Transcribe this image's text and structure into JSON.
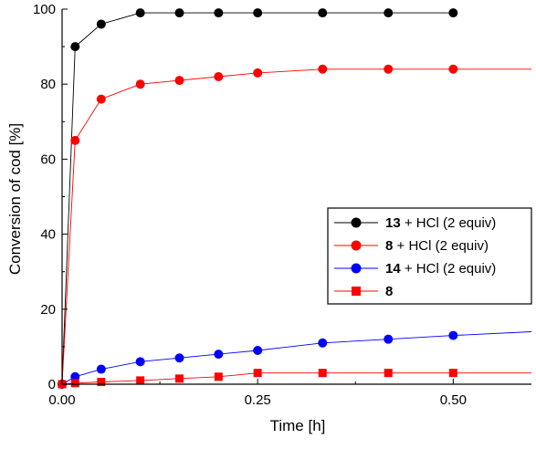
{
  "chart_data": {
    "type": "line",
    "xlabel": "Time [h]",
    "ylabel": "Conversion of cod [%]",
    "xlim": [
      0,
      0.6
    ],
    "ylim": [
      0,
      100
    ],
    "xticks": [
      0.0,
      0.25,
      0.5
    ],
    "xtick_labels": [
      "0.00",
      "0.25",
      "0.50"
    ],
    "yticks": [
      0,
      20,
      40,
      60,
      80,
      100
    ],
    "ytick_labels": [
      "0",
      "20",
      "40",
      "60",
      "80",
      "100"
    ],
    "grid": false,
    "legend_position": "center-right",
    "series": [
      {
        "name": "13 + HCl (2 equiv)",
        "name_bold": "13",
        "name_rest": " + HCl (2 equiv)",
        "color": "#000000",
        "marker": "circle",
        "x": [
          0,
          0.0167,
          0.05,
          0.1,
          0.15,
          0.2,
          0.25,
          0.333,
          0.417,
          0.5
        ],
        "y": [
          0,
          90,
          96,
          99,
          99,
          99,
          99,
          99,
          99,
          99
        ],
        "line_x": [
          0,
          0.0167,
          0.05,
          0.1,
          0.15,
          0.2,
          0.25,
          0.333,
          0.417,
          0.5
        ],
        "line_y": [
          0,
          90,
          96,
          99,
          99,
          99,
          99,
          99,
          99,
          99
        ]
      },
      {
        "name": "8 + HCl (2 equiv)",
        "name_bold": "8",
        "name_rest": " + HCl (2 equiv)",
        "color": "#ff0000",
        "marker": "circle",
        "x": [
          0,
          0.0167,
          0.05,
          0.1,
          0.15,
          0.2,
          0.25,
          0.333,
          0.417,
          0.5
        ],
        "y": [
          0,
          65,
          76,
          80,
          81,
          82,
          83,
          84,
          84,
          84
        ],
        "line_x": [
          0,
          0.0167,
          0.05,
          0.1,
          0.15,
          0.2,
          0.25,
          0.333,
          0.417,
          0.5,
          0.6
        ],
        "line_y": [
          0,
          65,
          76,
          80,
          81,
          82,
          83,
          84,
          84,
          84,
          84
        ]
      },
      {
        "name": "14 + HCl (2 equiv)",
        "name_bold": "14",
        "name_rest": " + HCl (2 equiv)",
        "color": "#0000ff",
        "marker": "circle",
        "x": [
          0,
          0.0167,
          0.05,
          0.1,
          0.15,
          0.2,
          0.25,
          0.333,
          0.417,
          0.5
        ],
        "y": [
          0,
          2,
          4,
          6,
          7,
          8,
          9,
          11,
          12,
          13
        ],
        "line_x": [
          0,
          0.0167,
          0.05,
          0.1,
          0.15,
          0.2,
          0.25,
          0.333,
          0.417,
          0.5,
          0.6
        ],
        "line_y": [
          0,
          2,
          4,
          6,
          7,
          8,
          9,
          11,
          12,
          13,
          14
        ]
      },
      {
        "name": "8",
        "name_bold": "8",
        "name_rest": "",
        "color": "#ff0000",
        "marker": "square",
        "x": [
          0,
          0.0167,
          0.05,
          0.1,
          0.15,
          0.2,
          0.25,
          0.333,
          0.417,
          0.5
        ],
        "y": [
          0,
          0.3,
          0.6,
          1,
          1.5,
          2,
          3,
          3,
          3,
          3
        ],
        "line_x": [
          0,
          0.0167,
          0.05,
          0.1,
          0.15,
          0.2,
          0.25,
          0.333,
          0.417,
          0.5,
          0.6
        ],
        "line_y": [
          0,
          0.3,
          0.6,
          1,
          1.5,
          2,
          3,
          3,
          3,
          3,
          3
        ]
      }
    ]
  }
}
